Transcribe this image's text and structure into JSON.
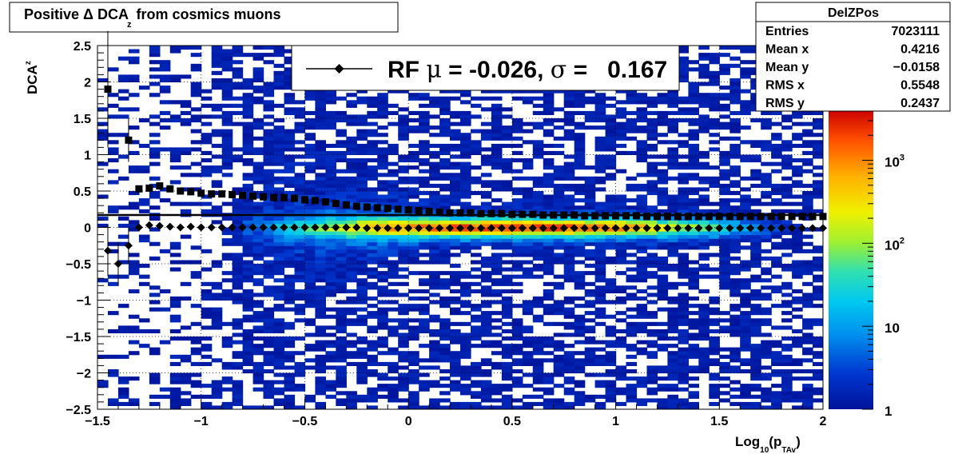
{
  "chart_data": {
    "type": "heatmap",
    "title": "Positive Δ DCA",
    "title_subscript": "z",
    "title_suffix": "from cosmics muons",
    "xlabel": "Log",
    "xlabel_sub": "10",
    "xlabel_mid": "(p",
    "xlabel_sub2": "TAv",
    "xlabel_end": ")",
    "ylabel": "DCA",
    "ylabel_sub": "z",
    "xlim": [
      -1.5,
      2.0
    ],
    "ylim": [
      -2.5,
      2.5
    ],
    "log_z": true,
    "grid": true,
    "x_ticks": [
      "−1.5",
      "−1",
      "−0.5",
      "0",
      "0.5",
      "1",
      "1.5",
      "2"
    ],
    "x_tick_values": [
      -1.5,
      -1.0,
      -0.5,
      0.0,
      0.5,
      1.0,
      1.5,
      2.0
    ],
    "y_ticks": [
      "2.5",
      "2",
      "1.5",
      "1",
      "0.5",
      "0",
      "−0.5",
      "−1",
      "−1.5",
      "−2",
      "−2.5"
    ],
    "y_tick_values": [
      2.5,
      2.0,
      1.5,
      1.0,
      0.5,
      0.0,
      -0.5,
      -1.0,
      -1.5,
      -2.0,
      -2.5
    ],
    "colorbar": {
      "labels": [
        {
          "base": "1",
          "exp": "",
          "value": 1
        },
        {
          "base": "10",
          "exp": "",
          "value": 10
        },
        {
          "base": "10",
          "exp": "2",
          "value": 100
        },
        {
          "base": "10",
          "exp": "3",
          "value": 1000
        }
      ],
      "max": 4000
    },
    "stats_box": {
      "title": "DelZPos",
      "rows": [
        {
          "label": "Entries",
          "value": "7023111"
        },
        {
          "label": "Mean x",
          "value": "0.4216"
        },
        {
          "label": "Mean y",
          "value": "−0.0158"
        },
        {
          "label": "RMS x",
          "value": "0.5548"
        },
        {
          "label": "RMS y",
          "value": "0.2437"
        }
      ]
    },
    "legend": {
      "prefix": "RF ",
      "mu": "μ",
      "middle": " = -0.026, ",
      "sigma": "σ",
      "suffix": " =   0.167"
    },
    "series": [
      {
        "marker": "diamond",
        "x": [
          -1.45,
          -1.4,
          -1.35,
          -1.3,
          -1.25,
          -1.2,
          -1.15,
          -1.1,
          -1.05,
          -1.0,
          -0.95,
          -0.9,
          -0.85,
          -0.8,
          -0.75,
          -0.7,
          -0.65,
          -0.6,
          -0.55,
          -0.5,
          -0.45,
          -0.4,
          -0.35,
          -0.3,
          -0.25,
          -0.2,
          -0.15,
          -0.1,
          -0.05,
          0.0,
          0.05,
          0.1,
          0.15,
          0.2,
          0.25,
          0.3,
          0.35,
          0.4,
          0.45,
          0.5,
          0.55,
          0.6,
          0.65,
          0.7,
          0.75,
          0.8,
          0.85,
          0.9,
          0.95,
          1.0,
          1.05,
          1.1,
          1.15,
          1.2,
          1.25,
          1.3,
          1.35,
          1.4,
          1.45,
          1.5,
          1.55,
          1.6,
          1.65,
          1.7,
          1.75,
          1.8,
          1.85,
          1.9,
          1.95,
          2.0
        ],
        "y": [
          -0.32,
          -0.5,
          -0.25,
          0.0,
          0.03,
          0.02,
          0.01,
          0.0,
          0.01,
          0.0,
          0.0,
          0.0,
          0.0,
          0.0,
          0.0,
          0.0,
          0.0,
          0.0,
          0.0,
          0.0,
          0.0,
          0.0,
          0.0,
          0.0,
          0.0,
          -0.01,
          -0.01,
          -0.01,
          -0.01,
          -0.01,
          -0.01,
          -0.01,
          -0.01,
          -0.01,
          -0.01,
          -0.01,
          -0.01,
          -0.01,
          -0.01,
          -0.01,
          -0.01,
          -0.01,
          -0.01,
          -0.01,
          -0.01,
          -0.01,
          -0.01,
          -0.01,
          -0.01,
          -0.01,
          -0.01,
          -0.01,
          -0.01,
          -0.01,
          -0.01,
          -0.01,
          -0.01,
          -0.01,
          -0.01,
          -0.01,
          -0.01,
          -0.01,
          -0.01,
          -0.01,
          -0.01,
          -0.01,
          -0.01,
          -0.01,
          -0.01,
          -0.01
        ],
        "err": [
          0.35,
          0.3,
          0.25,
          0,
          0,
          0,
          0,
          0,
          0,
          0,
          0,
          0,
          0,
          0,
          0,
          0,
          0,
          0,
          0,
          0,
          0,
          0,
          0,
          0,
          0,
          0,
          0,
          0,
          0,
          0,
          0,
          0,
          0,
          0,
          0,
          0,
          0,
          0,
          0,
          0,
          0,
          0,
          0,
          0,
          0,
          0,
          0,
          0,
          0,
          0,
          0,
          0,
          0,
          0,
          0,
          0,
          0,
          0,
          0,
          0,
          0,
          0,
          0,
          0,
          0,
          0,
          0,
          0,
          0,
          0
        ]
      },
      {
        "marker": "square",
        "x": [
          -1.45,
          -1.35,
          -1.3,
          -1.25,
          -1.2,
          -1.15,
          -1.1,
          -1.05,
          -1.0,
          -0.95,
          -0.9,
          -0.85,
          -0.8,
          -0.75,
          -0.7,
          -0.65,
          -0.6,
          -0.55,
          -0.5,
          -0.45,
          -0.4,
          -0.35,
          -0.3,
          -0.25,
          -0.2,
          -0.15,
          -0.1,
          -0.05,
          0.0,
          0.05,
          0.1,
          0.15,
          0.2,
          0.25,
          0.3,
          0.35,
          0.4,
          0.45,
          0.5,
          0.55,
          0.6,
          0.65,
          0.7,
          0.75,
          0.8,
          0.85,
          0.9,
          0.95,
          1.0,
          1.05,
          1.1,
          1.15,
          1.2,
          1.25,
          1.3,
          1.35,
          1.4,
          1.45,
          1.5,
          1.55,
          1.6,
          1.65,
          1.7,
          1.75,
          1.8,
          1.85,
          1.9,
          1.95,
          2.0
        ],
        "y": [
          1.9,
          1.2,
          0.53,
          0.54,
          0.57,
          0.53,
          0.5,
          0.49,
          0.47,
          0.46,
          0.46,
          0.45,
          0.44,
          0.43,
          0.42,
          0.41,
          0.41,
          0.4,
          0.38,
          0.37,
          0.35,
          0.33,
          0.31,
          0.29,
          0.28,
          0.27,
          0.26,
          0.25,
          0.24,
          0.23,
          0.22,
          0.21,
          0.2,
          0.2,
          0.2,
          0.19,
          0.19,
          0.19,
          0.18,
          0.18,
          0.18,
          0.17,
          0.17,
          0.17,
          0.17,
          0.16,
          0.16,
          0.16,
          0.16,
          0.16,
          0.16,
          0.15,
          0.15,
          0.15,
          0.15,
          0.15,
          0.15,
          0.15,
          0.15,
          0.15,
          0.15,
          0.15,
          0.15,
          0.15,
          0.15,
          0.15,
          0.15,
          0.15,
          0.15
        ],
        "err": [
          0.8,
          0.3,
          0,
          0,
          0,
          0,
          0,
          0,
          0,
          0,
          0,
          0,
          0,
          0,
          0,
          0,
          0,
          0,
          0,
          0,
          0,
          0,
          0,
          0,
          0,
          0,
          0,
          0,
          0,
          0,
          0,
          0,
          0,
          0,
          0,
          0,
          0,
          0,
          0,
          0,
          0,
          0,
          0,
          0,
          0,
          0,
          0,
          0,
          0,
          0,
          0,
          0,
          0,
          0,
          0,
          0,
          0,
          0,
          0,
          0,
          0,
          0,
          0,
          0,
          0,
          0,
          0,
          0,
          0
        ]
      }
    ],
    "horizontal_line_y": 0.17,
    "heatmap_model": {
      "peak_x": 0.5,
      "peak_log_count": 3.6,
      "x_spread": 0.8,
      "y_width_base": 0.12,
      "y_width_low_x": 0.75,
      "core_width": 0.1
    }
  }
}
